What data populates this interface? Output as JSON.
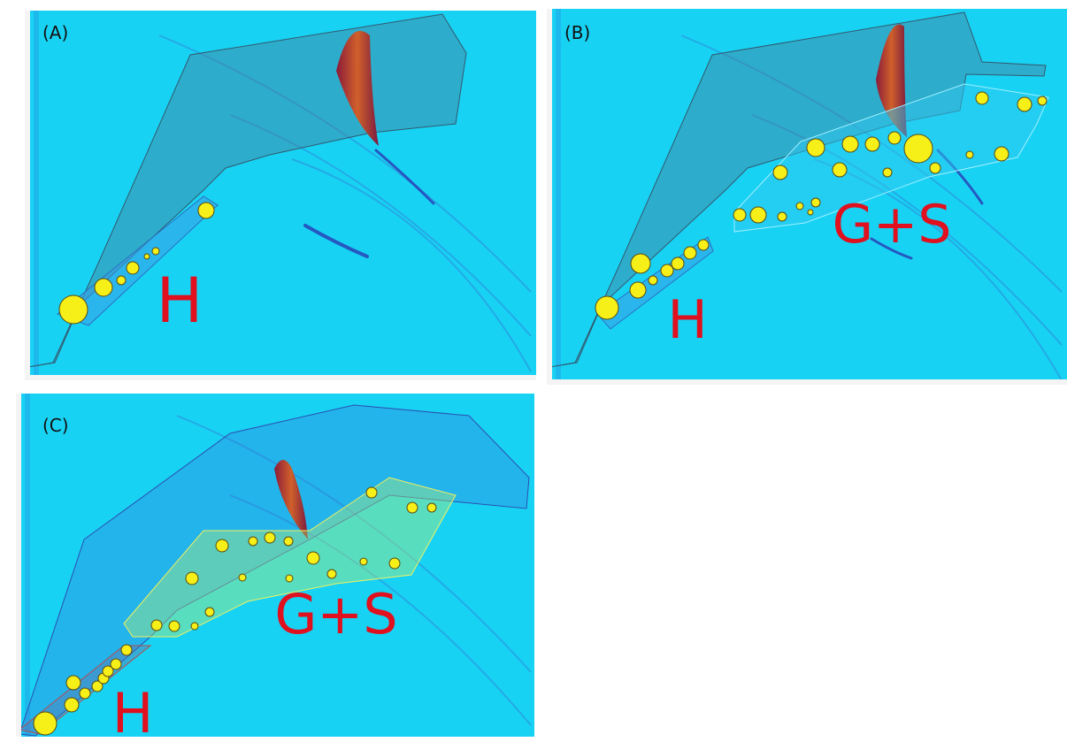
{
  "panels": [
    {
      "label": "(A)",
      "regions": [
        "H"
      ]
    },
    {
      "label": "(B)",
      "regions": [
        "G+S",
        "H"
      ]
    },
    {
      "label": "(C)",
      "regions": [
        "G+S",
        "H"
      ]
    }
  ]
}
